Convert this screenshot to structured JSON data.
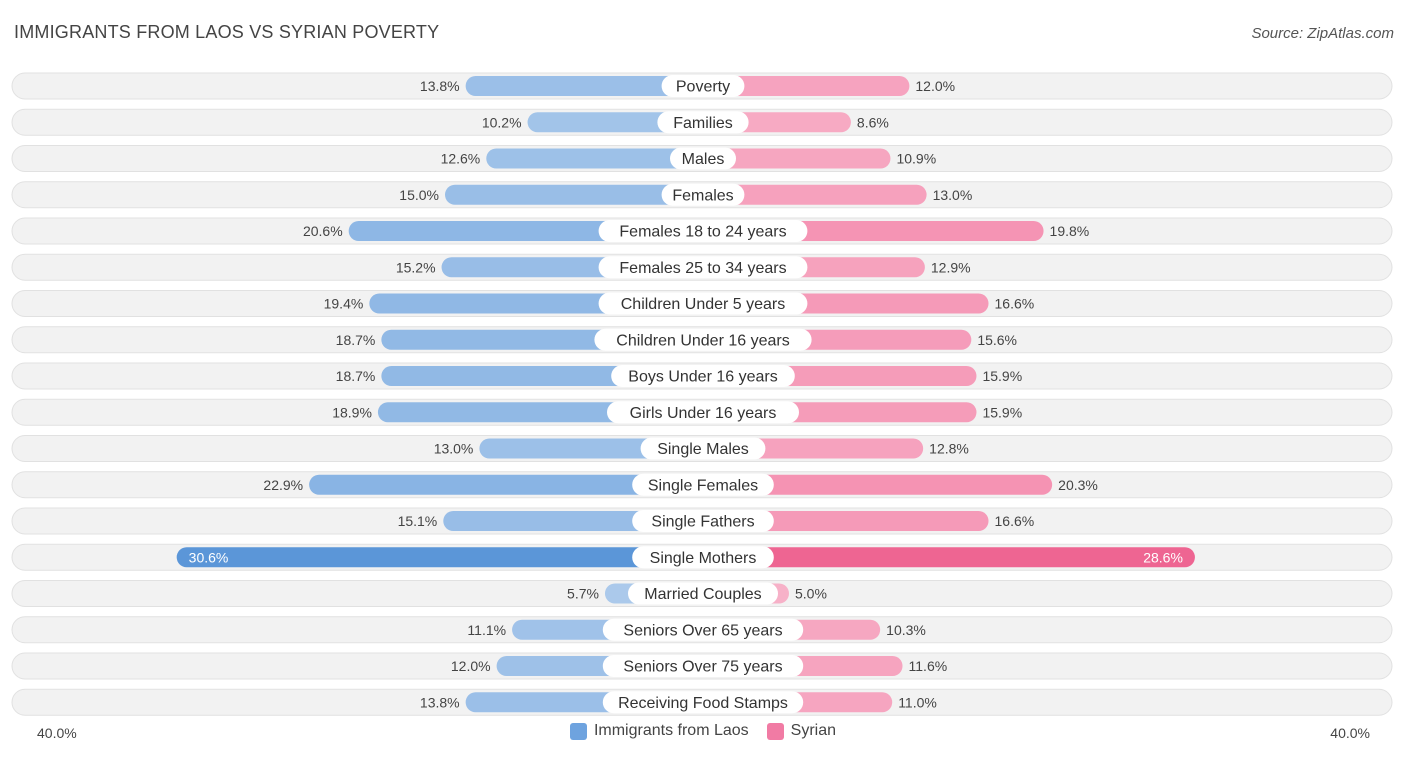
{
  "title": "IMMIGRANTS FROM LAOS VS SYRIAN POVERTY",
  "source": "Source: ZipAtlas.com",
  "colors": {
    "left": "#7aaae0",
    "right": "#f383a8",
    "left_strong": "#5b96d8",
    "right_strong": "#ee6592"
  },
  "chart_data": {
    "type": "bar",
    "orientation": "horizontal-diverging",
    "categories": [
      "Poverty",
      "Families",
      "Males",
      "Females",
      "Females 18 to 24 years",
      "Females 25 to 34 years",
      "Children Under 5 years",
      "Children Under 16 years",
      "Boys Under 16 years",
      "Girls Under 16 years",
      "Single Males",
      "Single Females",
      "Single Fathers",
      "Single Mothers",
      "Married Couples",
      "Seniors Over 65 years",
      "Seniors Over 75 years",
      "Receiving Food Stamps"
    ],
    "series": [
      {
        "name": "Immigrants from Laos",
        "values": [
          13.8,
          10.2,
          12.6,
          15.0,
          20.6,
          15.2,
          19.4,
          18.7,
          18.7,
          18.9,
          13.0,
          22.9,
          15.1,
          30.6,
          5.7,
          11.1,
          12.0,
          13.8
        ],
        "labels": [
          "13.8%",
          "10.2%",
          "12.6%",
          "15.0%",
          "20.6%",
          "15.2%",
          "19.4%",
          "18.7%",
          "18.7%",
          "18.9%",
          "13.0%",
          "22.9%",
          "15.1%",
          "30.6%",
          "5.7%",
          "11.1%",
          "12.0%",
          "13.8%"
        ]
      },
      {
        "name": "Syrian",
        "values": [
          12.0,
          8.6,
          10.9,
          13.0,
          19.8,
          12.9,
          16.6,
          15.6,
          15.9,
          15.9,
          12.8,
          20.3,
          16.6,
          28.6,
          5.0,
          10.3,
          11.6,
          11.0
        ],
        "labels": [
          "12.0%",
          "8.6%",
          "10.9%",
          "13.0%",
          "19.8%",
          "12.9%",
          "16.6%",
          "15.6%",
          "15.9%",
          "15.9%",
          "12.8%",
          "20.3%",
          "16.6%",
          "28.6%",
          "5.0%",
          "10.3%",
          "11.6%",
          "11.0%"
        ]
      }
    ],
    "axis_max": 40.0,
    "axis_labels": {
      "left": "40.0%",
      "right": "40.0%"
    },
    "legend_position": "bottom-center"
  }
}
